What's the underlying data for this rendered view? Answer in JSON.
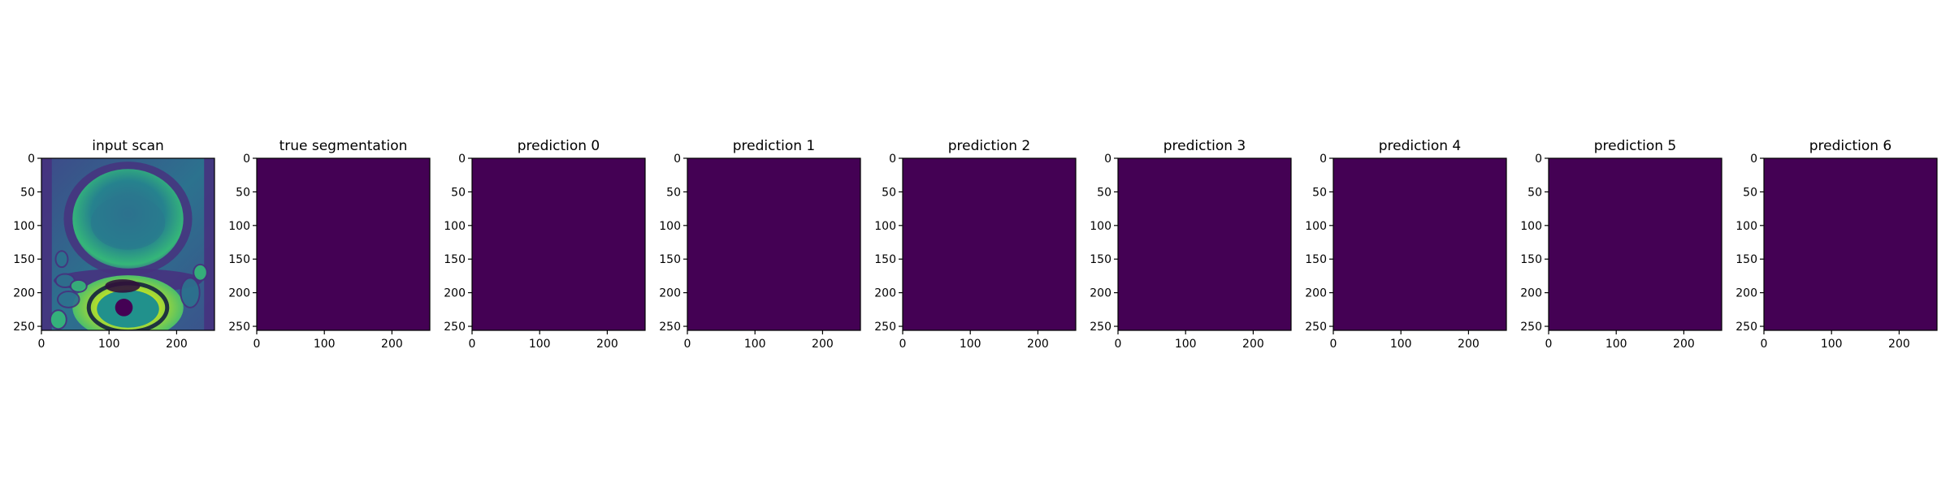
{
  "chart_data": {
    "type": "heatmap",
    "colors": {
      "background": "#440154",
      "scan_low": "#46327e",
      "scan_mid": "#21918c",
      "scan_high": "#fde725",
      "axis": "#000000"
    },
    "x_ticks": [
      0,
      100,
      200
    ],
    "y_ticks": [
      0,
      50,
      100,
      150,
      200,
      250
    ],
    "xlim": [
      0,
      256
    ],
    "ylim": [
      256,
      0
    ],
    "panels": [
      {
        "title": "input scan",
        "kind": "image"
      },
      {
        "title": "true segmentation",
        "kind": "mask",
        "value": 0
      },
      {
        "title": "prediction 0",
        "kind": "mask",
        "value": 0
      },
      {
        "title": "prediction 1",
        "kind": "mask",
        "value": 0
      },
      {
        "title": "prediction 2",
        "kind": "mask",
        "value": 0
      },
      {
        "title": "prediction 3",
        "kind": "mask",
        "value": 0
      },
      {
        "title": "prediction 4",
        "kind": "mask",
        "value": 0
      },
      {
        "title": "prediction 5",
        "kind": "mask",
        "value": 0
      },
      {
        "title": "prediction 6",
        "kind": "mask",
        "value": 0
      }
    ]
  }
}
